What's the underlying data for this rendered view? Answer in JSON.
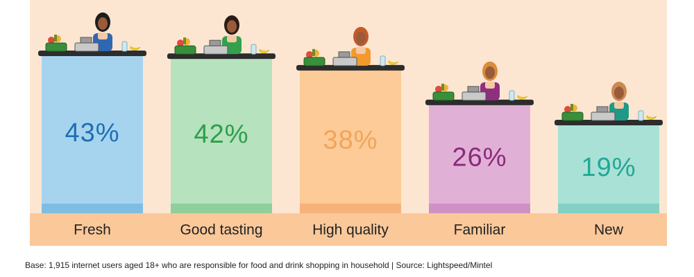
{
  "chart_data": {
    "type": "bar",
    "categories": [
      "Fresh",
      "Good tasting",
      "High quality",
      "Familiar",
      "New"
    ],
    "values": [
      43,
      42,
      38,
      26,
      19
    ],
    "value_labels": [
      "43%",
      "42%",
      "38%",
      "26%",
      "19%"
    ],
    "unit": "%",
    "ylim": [
      0,
      43
    ],
    "grid": false,
    "legend": "none"
  },
  "colors": {
    "panel_background": "#fde6d1",
    "category_band": "#fbc89a",
    "counter_top": "#2d2d2d",
    "bars": [
      "#a6d4ef",
      "#b6e2bd",
      "#fccb97",
      "#e1b0d6",
      "#a9e1d7"
    ],
    "bar_bases": [
      "#7fbde3",
      "#8fcf9b",
      "#f7b27a",
      "#cf91c5",
      "#85d0c4"
    ],
    "value_text": [
      "#1f6fb2",
      "#2e9e4d",
      "#f2a45a",
      "#8a2a7a",
      "#23a795"
    ],
    "cashier_hair": [
      "#1d1d1d",
      "#2b1d16",
      "#c35a2a",
      "#d98c3a",
      "#c98a55"
    ],
    "cashier_uniform": [
      "#2f67b2",
      "#34a04e",
      "#f29a2e",
      "#8f2f80",
      "#1d9a87"
    ]
  },
  "icons": [
    "cashier-figure",
    "shopping-basket-icon",
    "cash-register-icon",
    "water-bottle-icon",
    "banana-icon"
  ],
  "footnote": "Base: 1,915 internet users aged 18+ who are responsible for food and drink shopping in household | Source: Lightspeed/Mintel"
}
